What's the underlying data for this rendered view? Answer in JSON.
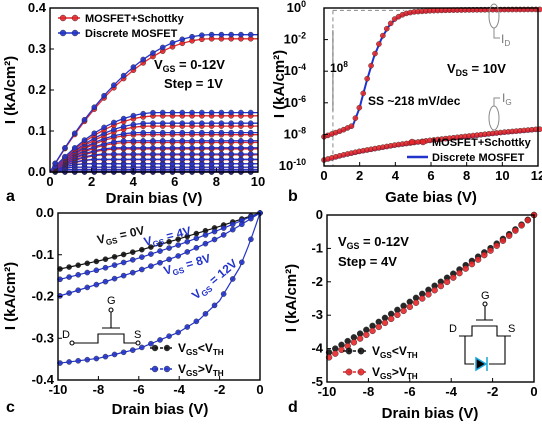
{
  "chart_data": [
    {
      "panel": "a",
      "type": "line",
      "xlabel": "Drain bias (V)",
      "ylabel": "I (kA/cm²)",
      "xlim": [
        0,
        10
      ],
      "ylim": [
        0,
        0.4
      ],
      "xticks": [
        0,
        2,
        4,
        6,
        8,
        10
      ],
      "yticks": [
        0.0,
        0.1,
        0.2,
        0.3,
        0.4
      ],
      "legend": [
        {
          "name": "MOSFET+Schottky",
          "color": "#e8262a",
          "marker": "circle"
        },
        {
          "name": "Discrete MOSFET",
          "color": "#2233cc",
          "marker": "circle"
        }
      ],
      "annotation": {
        "vgs_prefix": "V",
        "vgs_sub": "GS",
        "vgs_value": " = 0-12V",
        "step": "Step = 1V"
      },
      "curve_saturation_red": [
        0.0,
        0.002,
        0.006,
        0.012,
        0.02,
        0.03,
        0.042,
        0.056,
        0.072,
        0.091,
        0.112,
        0.137,
        0.325
      ],
      "curve_saturation_blue": [
        0.0,
        0.002,
        0.006,
        0.012,
        0.02,
        0.031,
        0.044,
        0.059,
        0.076,
        0.096,
        0.119,
        0.145,
        0.335
      ],
      "curve_vsat_red": [
        0.1,
        0.4,
        0.8,
        1.3,
        1.8,
        2.3,
        2.8,
        3.3,
        3.8,
        4.3,
        4.8,
        5.2,
        7.8
      ],
      "curve_vsat_blue": [
        0.1,
        0.4,
        0.8,
        1.3,
        1.8,
        2.3,
        2.8,
        3.3,
        3.8,
        4.3,
        4.8,
        5.2,
        7.8
      ]
    },
    {
      "panel": "b",
      "type": "line",
      "yscale": "log",
      "xlabel": "Gate bias (V)",
      "ylabel": "I (kA/cm²)",
      "xlim": [
        0,
        12
      ],
      "ylim": [
        1e-10,
        1
      ],
      "xticks": [
        0,
        2,
        4,
        6,
        8,
        10,
        12
      ],
      "yticks_exp": [
        -10,
        -8,
        -6,
        -4,
        -2,
        0
      ],
      "legend": [
        {
          "name": "MOSFET+Schottky",
          "color": "#e8262a",
          "marker": "circle"
        },
        {
          "name": "Discrete MOSFET",
          "color": "#2233cc",
          "marker": "line"
        }
      ],
      "annotations": {
        "ratio": "10",
        "ratio_exp": "8",
        "vds_prefix": "V",
        "vds_sub": "DS",
        "vds_value": "= 10V",
        "ss": "SS ~218 mV/dec",
        "id_prefix": "I",
        "id_sub": "D",
        "ig_prefix": "I",
        "ig_sub": "G"
      },
      "id_curve": {
        "x": [
          0,
          1,
          1.6,
          2.0,
          2.4,
          2.8,
          3.2,
          3.6,
          4.0,
          4.5,
          5.0,
          6.0,
          7.0,
          8.0,
          10.0,
          12.0
        ],
        "log10_y": [
          -8.2,
          -7.8,
          -7.5,
          -6.3,
          -4.6,
          -3.1,
          -2.0,
          -1.2,
          -0.7,
          -0.42,
          -0.3,
          -0.22,
          -0.19,
          -0.17,
          -0.15,
          -0.14
        ]
      },
      "ig_curve": {
        "x": [
          0,
          1,
          2,
          4,
          6,
          8,
          10,
          12
        ],
        "log10_y": [
          -9.7,
          -9.4,
          -9.15,
          -8.75,
          -8.45,
          -8.2,
          -7.95,
          -7.75
        ]
      }
    },
    {
      "panel": "c",
      "type": "line",
      "xlabel": "Drain bias (V)",
      "ylabel": "I (kA/cm²)",
      "xlim": [
        -10,
        0
      ],
      "ylim": [
        -0.4,
        0.0
      ],
      "xticks": [
        -10,
        -8,
        -6,
        -4,
        -2,
        0
      ],
      "yticks": [
        0.0,
        -0.1,
        -0.2,
        -0.3,
        -0.4
      ],
      "legend": [
        {
          "prefix": "V",
          "sub1": "GS",
          "mid": "<V",
          "sub2": "TH",
          "color": "#111111",
          "marker": "circle"
        },
        {
          "prefix": "V",
          "sub1": "GS",
          "mid": ">V",
          "sub2": "TH",
          "color": "#2233cc",
          "marker": "circle"
        }
      ],
      "curve_labels": [
        {
          "prefix": "V",
          "sub": "GS",
          "value": " = 0V",
          "color": "#111111"
        },
        {
          "prefix": "V",
          "sub": "GS",
          "value": " = 4V",
          "color": "#2233cc"
        },
        {
          "prefix": "V",
          "sub": "GS",
          "value": " = 8V",
          "color": "#2233cc"
        },
        {
          "prefix": "V",
          "sub": "GS",
          "value": " = 12V",
          "color": "#2233cc"
        }
      ],
      "circuit_labels": {
        "g": "G",
        "d": "D",
        "s": "S"
      },
      "series": [
        {
          "name": "0V",
          "color": "#111111",
          "x": [
            -10,
            -8,
            -6,
            -4,
            -2,
            -1,
            0
          ],
          "y": [
            -0.135,
            -0.115,
            -0.09,
            -0.062,
            -0.032,
            -0.016,
            0
          ]
        },
        {
          "name": "4V",
          "color": "#2233cc",
          "x": [
            -10,
            -8,
            -6,
            -4,
            -2,
            -1,
            0
          ],
          "y": [
            -0.16,
            -0.136,
            -0.108,
            -0.076,
            -0.04,
            -0.02,
            0
          ]
        },
        {
          "name": "8V",
          "color": "#2233cc",
          "x": [
            -10,
            -8,
            -6,
            -4,
            -2,
            -1,
            0
          ],
          "y": [
            -0.2,
            -0.17,
            -0.138,
            -0.102,
            -0.058,
            -0.03,
            0
          ]
        },
        {
          "name": "12V",
          "color": "#2233cc",
          "x": [
            -10,
            -8,
            -6,
            -4,
            -3,
            -2,
            -1,
            -0.5,
            0
          ],
          "y": [
            -0.36,
            -0.348,
            -0.325,
            -0.285,
            -0.255,
            -0.21,
            -0.13,
            -0.07,
            0
          ]
        }
      ]
    },
    {
      "panel": "d",
      "type": "line",
      "xlabel": "Drain bias (V)",
      "ylabel": "I (kA/cm²)",
      "xlim": [
        -10,
        0
      ],
      "ylim": [
        -5,
        0
      ],
      "xticks": [
        -10,
        -8,
        -6,
        -4,
        -2,
        0
      ],
      "yticks": [
        0,
        -1,
        -2,
        -3,
        -4,
        -5
      ],
      "annotation": {
        "vgs_prefix": "V",
        "vgs_sub": "GS",
        "vgs_value": " = 0-12V",
        "step": "Step = 4V"
      },
      "legend": [
        {
          "prefix": "V",
          "sub1": "GS",
          "mid": "<V",
          "sub2": "TH",
          "color": "#111111",
          "marker": "circle"
        },
        {
          "prefix": "V",
          "sub1": "GS",
          "mid": ">V",
          "sub2": "TH",
          "color": "#e8262a",
          "marker": "circle"
        }
      ],
      "circuit_labels": {
        "g": "G",
        "d": "D",
        "s": "S"
      },
      "series": [
        {
          "name": "black",
          "color": "#111111",
          "x": [
            -10,
            -8,
            -6,
            -4,
            -2,
            -1,
            0
          ],
          "y": [
            -4.15,
            -3.4,
            -2.6,
            -1.8,
            -0.95,
            -0.48,
            0
          ]
        },
        {
          "name": "red",
          "color": "#e8262a",
          "x": [
            -10,
            -8,
            -6,
            -4,
            -2,
            -1,
            0
          ],
          "y": [
            -4.3,
            -3.55,
            -2.75,
            -1.92,
            -1.02,
            -0.52,
            0
          ]
        }
      ]
    }
  ],
  "panel_labels": [
    "a",
    "b",
    "c",
    "d"
  ],
  "colors": {
    "red": "#e8262a",
    "blue": "#2233cc",
    "black": "#111111",
    "cyan": "#19a7d8"
  }
}
